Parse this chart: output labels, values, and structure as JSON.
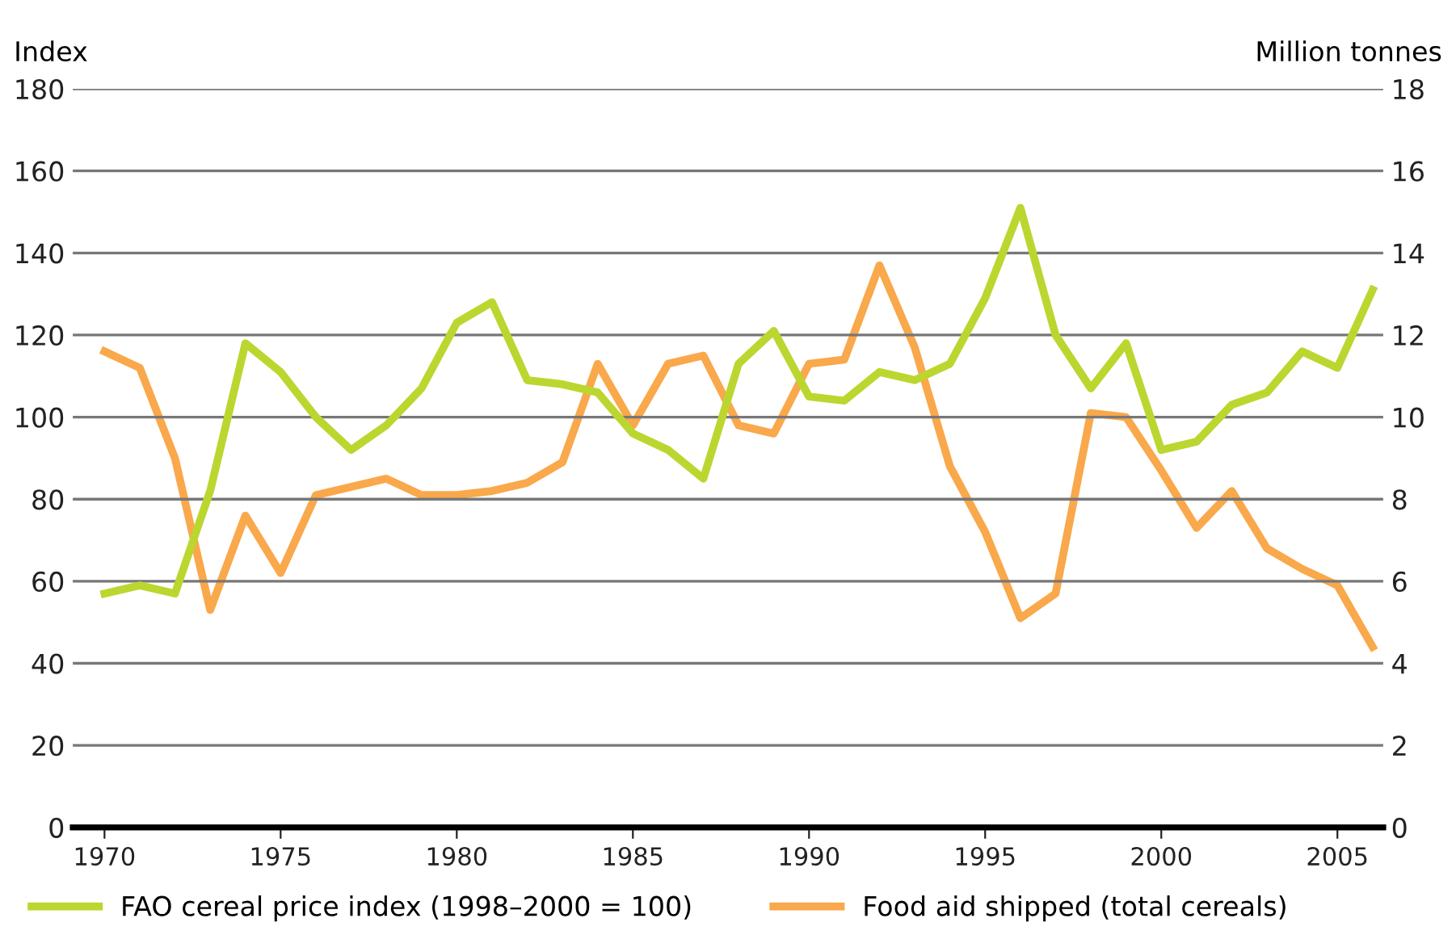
{
  "chart_data": {
    "type": "line",
    "ylabel": "Index",
    "y2label": "Million tonnes",
    "x": [
      1970,
      1971,
      1972,
      1973,
      1974,
      1975,
      1976,
      1977,
      1978,
      1979,
      1980,
      1981,
      1982,
      1983,
      1984,
      1985,
      1986,
      1987,
      1988,
      1989,
      1990,
      1991,
      1992,
      1993,
      1994,
      1995,
      1996,
      1997,
      1998,
      1999,
      2000,
      2001,
      2002,
      2003,
      2004,
      2005,
      2006
    ],
    "series": [
      {
        "name": "FAO cereal price index (1998–2000 = 100)",
        "color": "#bcd630",
        "values": [
          57,
          59,
          57,
          82,
          118,
          111,
          100,
          92,
          98,
          107,
          123,
          128,
          109,
          108,
          106,
          96,
          92,
          85,
          113,
          121,
          105,
          104,
          111,
          109,
          113,
          129,
          151,
          120,
          107,
          118,
          92,
          94,
          103,
          106,
          116,
          112,
          131
        ]
      },
      {
        "name": "Food aid shipped (total cereals)",
        "color": "#f9a84b",
        "axis": "y2",
        "values": [
          11.6,
          11.2,
          9.0,
          5.3,
          7.6,
          6.2,
          8.1,
          8.3,
          8.5,
          8.1,
          8.1,
          8.2,
          8.4,
          8.9,
          11.3,
          9.8,
          11.3,
          11.5,
          9.8,
          9.6,
          11.3,
          11.4,
          13.7,
          11.7,
          8.8,
          7.2,
          5.1,
          5.7,
          10.1,
          10.0,
          8.7,
          7.3,
          8.2,
          6.8,
          6.3,
          5.9,
          4.4
        ]
      }
    ],
    "xlim": [
      1969.1,
      2006.3
    ],
    "xticks": [
      1970,
      1975,
      1980,
      1985,
      1990,
      1995,
      2000,
      2005
    ],
    "ylim": [
      0,
      180
    ],
    "yticks": [
      0,
      20,
      40,
      60,
      80,
      100,
      120,
      140,
      160,
      180
    ],
    "y2lim": [
      0,
      18
    ],
    "y2ticks": [
      0,
      2,
      4,
      6,
      8,
      10,
      12,
      14,
      16,
      18
    ],
    "grid": "y",
    "legend": "bottom",
    "marker": "none",
    "line_style": "solid"
  }
}
